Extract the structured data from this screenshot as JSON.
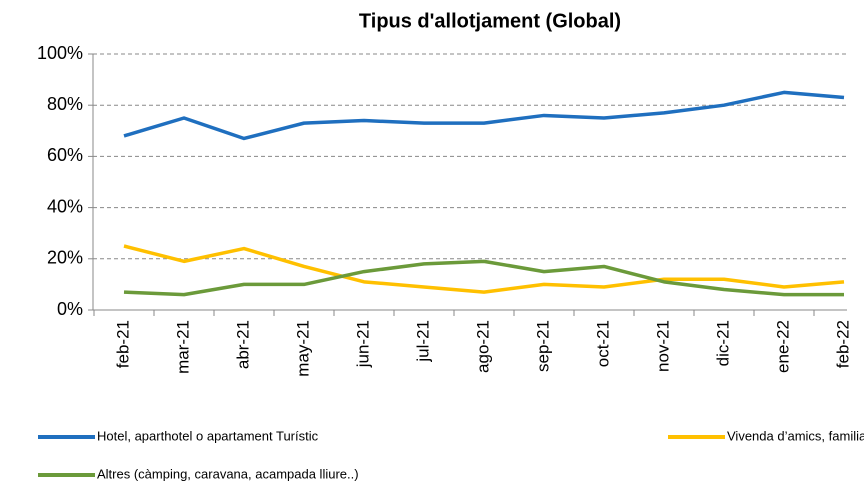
{
  "chart_data": {
    "type": "line",
    "title": "Tipus d'allotjament (Global)",
    "categories": [
      "feb-21",
      "mar-21",
      "abr-21",
      "may-21",
      "jun-21",
      "jul-21",
      "ago-21",
      "sep-21",
      "oct-21",
      "nov-21",
      "dic-21",
      "ene-22",
      "feb-22"
    ],
    "series": [
      {
        "name": "Hotel, aparthotel o apartament Turístic",
        "color": "#1f6fbf",
        "values": [
          68,
          75,
          67,
          73,
          74,
          73,
          73,
          76,
          75,
          77,
          80,
          85,
          83
        ]
      },
      {
        "name": "Vivenda d’amics, familiars o pròpia",
        "color": "#ffc000",
        "values": [
          25,
          19,
          24,
          17,
          11,
          9,
          7,
          10,
          9,
          12,
          12,
          9,
          11
        ]
      },
      {
        "name": "Altres (càmping, caravana, acampada lliure..)",
        "color": "#6b9a3a",
        "values": [
          7,
          6,
          10,
          10,
          15,
          18,
          19,
          15,
          17,
          11,
          8,
          6,
          6
        ]
      }
    ],
    "ylim": [
      0,
      100
    ],
    "yticks": [
      {
        "value": 0,
        "label": "0%"
      },
      {
        "value": 20,
        "label": "20%"
      },
      {
        "value": 40,
        "label": "40%"
      },
      {
        "value": 60,
        "label": "60%"
      },
      {
        "value": 80,
        "label": "80%"
      },
      {
        "value": 100,
        "label": "100%"
      }
    ],
    "grid": true
  }
}
